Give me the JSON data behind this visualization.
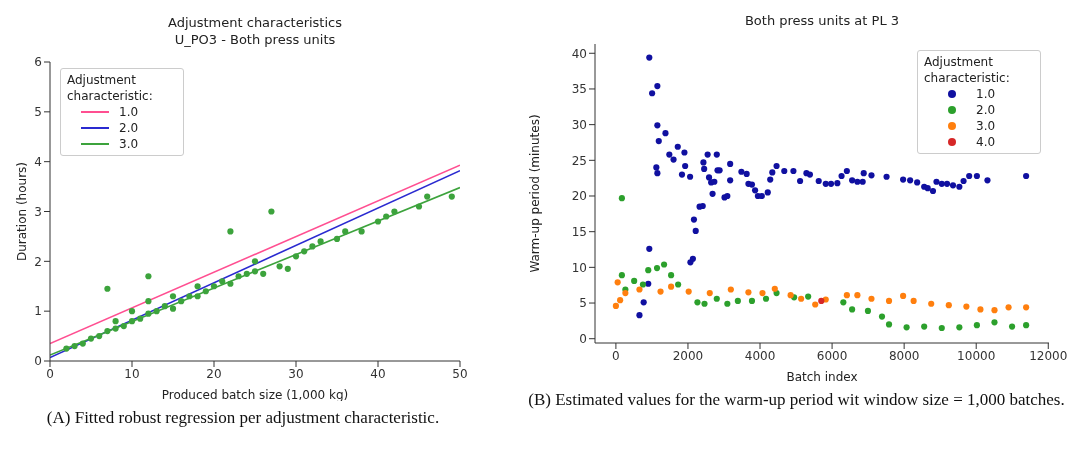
{
  "chart_data": [
    {
      "type": "scatter",
      "title": "Adjustment characteristics",
      "subtitle": "U_PO3 - Both press units",
      "xlabel": "Produced batch size (1,000 kg)",
      "ylabel": "Duration (hours)",
      "legend_title": "Adjustment characteristic:",
      "legend": "top left",
      "xlim": [
        0,
        50
      ],
      "xticks": [
        0,
        10,
        20,
        30,
        40,
        50
      ],
      "ylim": [
        0,
        6
      ],
      "yticks": [
        0,
        1,
        2,
        3,
        4,
        5,
        6
      ],
      "annotations": [
        "(A) Fitted robust regression per adjustment characteristic."
      ],
      "series": [
        {
          "marker": "circle",
          "color": "#3ca33c",
          "x": [
            2,
            3,
            4,
            5,
            6,
            7,
            8,
            8,
            9,
            10,
            10,
            11,
            12,
            12,
            13,
            14,
            15,
            15,
            16,
            17,
            18,
            18,
            19,
            20,
            21,
            22,
            23,
            24,
            25,
            25,
            26,
            28,
            29,
            30,
            31,
            32,
            33,
            35,
            36,
            38,
            40,
            41,
            42,
            45,
            46,
            49,
            7,
            12,
            22,
            27
          ],
          "values": [
            0.25,
            0.3,
            0.35,
            0.45,
            0.5,
            0.6,
            0.65,
            0.8,
            0.7,
            0.8,
            1.0,
            0.85,
            0.95,
            1.2,
            1.0,
            1.1,
            1.05,
            1.3,
            1.2,
            1.3,
            1.3,
            1.5,
            1.4,
            1.5,
            1.6,
            1.55,
            1.7,
            1.75,
            1.8,
            2.0,
            1.75,
            1.9,
            1.85,
            2.1,
            2.2,
            2.3,
            2.4,
            2.45,
            2.6,
            2.6,
            2.8,
            2.9,
            3.0,
            3.1,
            3.3,
            3.3,
            1.45,
            1.7,
            2.6,
            3.0
          ]
        },
        {
          "type": "line",
          "name": "1.0",
          "color": "#ff4f91",
          "x": [
            0,
            50
          ],
          "values": [
            0.35,
            3.93
          ]
        },
        {
          "type": "line",
          "name": "2.0",
          "color": "#2a2ad0",
          "x": [
            0,
            50
          ],
          "values": [
            0.07,
            3.82
          ]
        },
        {
          "type": "line",
          "name": "3.0",
          "color": "#3ca33c",
          "x": [
            0,
            50
          ],
          "values": [
            0.12,
            3.48
          ]
        }
      ]
    },
    {
      "type": "scatter",
      "title": "Both press units at PL 3",
      "xlabel": "Batch index",
      "ylabel": "Warm-up period (minutes)",
      "legend_title": "Adjustment characteristic:",
      "legend": "top right",
      "marker": "circle",
      "xlim": [
        -580,
        12020
      ],
      "xticks": [
        0,
        2000,
        4000,
        6000,
        8000,
        10000,
        12000
      ],
      "ylim": [
        -0.6,
        41.3
      ],
      "yticks": [
        0,
        5,
        10,
        15,
        20,
        25,
        30,
        35,
        40
      ],
      "annotations": [
        "(B) Estimated values for the warm-up period wit window size = 1,000 batches."
      ],
      "series": [
        {
          "name": "1.0",
          "color": "#1010a0",
          "x": [
            654,
            771,
            898,
            927,
            927,
            1005,
            1151,
            1151,
            1190,
            1122,
            1151,
            1376,
            1483,
            1600,
            1717,
            1834,
            1902,
            1922,
            2059,
            2068,
            2137,
            2166,
            2215,
            2322,
            2410,
            2429,
            2449,
            2546,
            2585,
            2644,
            2683,
            2732,
            2800,
            2820,
            2878,
            3015,
            3093,
            3171,
            3171,
            3483,
            3629,
            3678,
            3776,
            3863,
            3941,
            4049,
            4215,
            4283,
            4341,
            4459,
            4673,
            4927,
            5112,
            5288,
            5385,
            5629,
            5824,
            5971,
            6146,
            6263,
            6410,
            6556,
            6702,
            6849,
            6878,
            7093,
            7512,
            7971,
            8166,
            8361,
            8556,
            8654,
            8800,
            8897,
            9044,
            9190,
            9356,
            9532,
            9649,
            9805,
            10019,
            10312,
            11385
          ],
          "values": [
            3.3,
            5.1,
            7.7,
            12.6,
            39.4,
            34.4,
            35.4,
            29.9,
            27.7,
            24.0,
            23.2,
            28.8,
            25.8,
            25.1,
            26.9,
            23.0,
            26.1,
            24.2,
            22.7,
            10.7,
            11.2,
            16.7,
            15.1,
            18.5,
            18.6,
            24.7,
            23.8,
            25.8,
            22.6,
            21.9,
            20.3,
            22.0,
            25.8,
            23.6,
            23.6,
            19.8,
            20.0,
            24.5,
            22.2,
            23.4,
            23.1,
            21.7,
            21.6,
            20.8,
            20.0,
            20.0,
            20.5,
            22.3,
            23.3,
            24.2,
            23.5,
            23.5,
            22.1,
            23.2,
            23.0,
            22.1,
            21.7,
            21.7,
            21.8,
            22.8,
            23.5,
            22.2,
            22.0,
            22.0,
            23.2,
            22.9,
            22.7,
            22.3,
            22.2,
            21.9,
            21.3,
            21.1,
            20.7,
            22.0,
            21.7,
            21.7,
            21.5,
            21.3,
            22.1,
            22.8,
            22.8,
            22.2,
            22.8
          ]
        },
        {
          "name": "2.0",
          "color": "#2ca02c",
          "x": [
            166,
            166,
            263,
            507,
            751,
            898,
            1141,
            1337,
            1532,
            1727,
            2020,
            2263,
            2459,
            2800,
            3093,
            3385,
            3776,
            4166,
            4459,
            4946,
            5336,
            5824,
            6312,
            6556,
            6995,
            7385,
            7580,
            8068,
            8556,
            9044,
            9532,
            10019,
            10507,
            10995,
            11385
          ],
          "values": [
            19.7,
            8.9,
            6.9,
            8.1,
            7.6,
            9.6,
            9.9,
            10.4,
            8.9,
            7.6,
            null,
            5.1,
            4.9,
            5.6,
            4.9,
            5.3,
            5.3,
            5.6,
            6.4,
            5.8,
            5.9,
            null,
            5.1,
            4.1,
            3.9,
            3.1,
            2.0,
            1.6,
            1.7,
            1.5,
            1.6,
            1.9,
            2.3,
            1.7,
            1.9
          ]
        },
        {
          "name": "3.0",
          "color": "#ff7f0e",
          "x": [
            0,
            49,
            117,
            263,
            654,
            1239,
            1532,
            2020,
            2605,
            3190,
            3678,
            4068,
            4410,
            4849,
            5141,
            5532,
            5824,
            6410,
            6702,
            7093,
            7580,
            7971,
            8263,
            8751,
            9239,
            9727,
            10117,
            10507,
            10898,
            11385
          ],
          "values": [
            4.6,
            7.9,
            5.4,
            6.4,
            6.9,
            6.6,
            7.3,
            6.6,
            6.4,
            6.9,
            6.5,
            6.4,
            7.0,
            6.1,
            5.6,
            4.8,
            5.5,
            6.1,
            6.1,
            5.6,
            5.3,
            6.0,
            5.3,
            4.9,
            4.7,
            4.5,
            4.1,
            4.0,
            4.4,
            4.4
          ]
        },
        {
          "name": "4.0",
          "color": "#d62728",
          "x": [
            5700
          ],
          "values": [
            5.3
          ]
        }
      ]
    }
  ]
}
